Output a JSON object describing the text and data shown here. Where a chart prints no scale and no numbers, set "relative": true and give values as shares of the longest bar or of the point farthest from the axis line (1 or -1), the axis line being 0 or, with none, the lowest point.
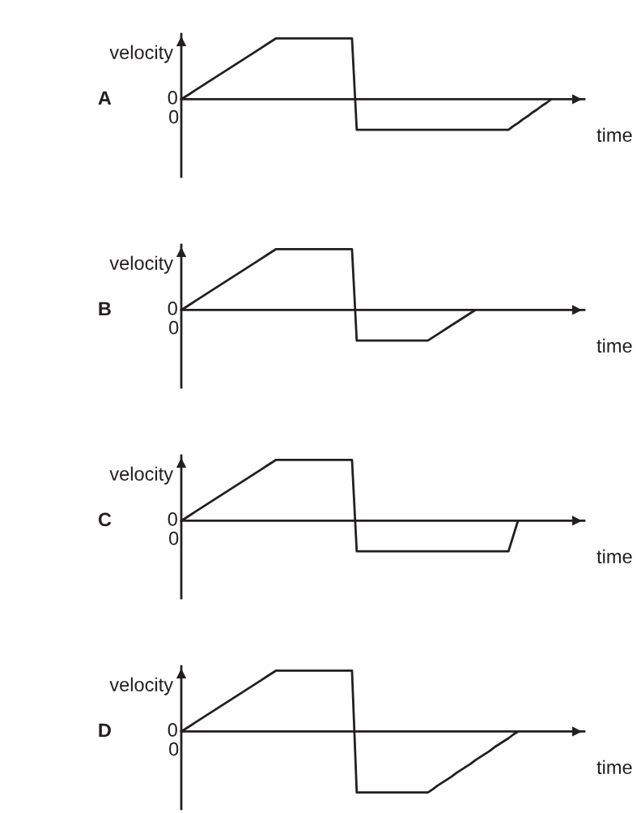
{
  "chart_data": [
    {
      "type": "line",
      "title": "A",
      "xlabel": "time",
      "ylabel": "velocity",
      "relative": true,
      "annotations": [
        "0",
        "0"
      ],
      "legend": false,
      "marker": "none",
      "line_style": "solid",
      "categories": [
        null,
        null,
        null,
        null,
        null,
        null,
        null,
        null,
        null,
        null,
        null,
        null,
        null,
        null,
        null,
        null,
        null,
        null,
        null,
        null,
        null,
        null,
        null,
        null,
        null,
        null,
        null,
        null,
        null,
        null,
        null,
        null,
        null,
        null,
        null,
        null,
        null,
        null,
        null,
        null,
        null,
        null,
        null,
        null,
        null,
        null,
        null,
        null,
        null,
        null,
        null,
        null,
        null,
        null,
        null,
        null,
        null,
        null,
        null,
        null,
        null,
        null,
        null,
        null,
        null,
        null,
        null,
        null,
        null,
        null,
        null,
        null,
        null,
        null,
        null,
        null,
        null,
        null,
        null,
        null,
        null,
        null,
        null,
        null,
        null,
        null
      ],
      "series": [
        {
          "color": "#231f20",
          "values": [
            0,
            0.05,
            0.1,
            0.15,
            0.2,
            0.25,
            0.3,
            0.35,
            0.4,
            0.45,
            0.5,
            0.55,
            0.6,
            0.65,
            0.7,
            0.75,
            0.8,
            0.85,
            0.9,
            0.95,
            1,
            1,
            1,
            1,
            1,
            1,
            1,
            1,
            1,
            1,
            1,
            1,
            1,
            1,
            1,
            1,
            1,
            -0.5,
            -0.5,
            -0.5,
            -0.5,
            -0.5,
            -0.5,
            -0.5,
            -0.5,
            -0.5,
            -0.5,
            -0.5,
            -0.5,
            -0.5,
            -0.5,
            -0.5,
            -0.5,
            -0.5,
            -0.5,
            -0.5,
            -0.5,
            -0.5,
            -0.5,
            -0.5,
            -0.5,
            -0.5,
            -0.5,
            -0.5,
            -0.5,
            -0.5,
            -0.5,
            -0.5,
            -0.5,
            -0.5,
            -0.44,
            -0.39,
            -0.33,
            -0.28,
            -0.22,
            -0.17,
            -0.11,
            -0.06,
            0,
            null,
            null,
            null,
            null,
            null,
            null,
            null
          ]
        }
      ]
    },
    {
      "type": "line",
      "title": "B",
      "xlabel": "time",
      "ylabel": "velocity",
      "relative": true,
      "annotations": [
        "0",
        "0"
      ],
      "legend": false,
      "marker": "none",
      "line_style": "solid",
      "categories": [
        null,
        null,
        null,
        null,
        null,
        null,
        null,
        null,
        null,
        null,
        null,
        null,
        null,
        null,
        null,
        null,
        null,
        null,
        null,
        null,
        null,
        null,
        null,
        null,
        null,
        null,
        null,
        null,
        null,
        null,
        null,
        null,
        null,
        null,
        null,
        null,
        null,
        null,
        null,
        null,
        null,
        null,
        null,
        null,
        null,
        null,
        null,
        null,
        null,
        null,
        null,
        null,
        null,
        null,
        null,
        null,
        null,
        null,
        null,
        null,
        null,
        null,
        null,
        null,
        null,
        null,
        null,
        null,
        null,
        null,
        null,
        null,
        null,
        null,
        null,
        null,
        null,
        null,
        null,
        null,
        null,
        null,
        null,
        null,
        null,
        null
      ],
      "series": [
        {
          "color": "#231f20",
          "values": [
            0,
            0.05,
            0.1,
            0.15,
            0.2,
            0.25,
            0.3,
            0.35,
            0.4,
            0.45,
            0.5,
            0.55,
            0.6,
            0.65,
            0.7,
            0.75,
            0.8,
            0.85,
            0.9,
            0.95,
            1,
            1,
            1,
            1,
            1,
            1,
            1,
            1,
            1,
            1,
            1,
            1,
            1,
            1,
            1,
            1,
            1,
            -0.5,
            -0.5,
            -0.5,
            -0.5,
            -0.5,
            -0.5,
            -0.5,
            -0.5,
            -0.5,
            -0.5,
            -0.5,
            -0.5,
            -0.5,
            -0.5,
            -0.5,
            -0.5,
            -0.45,
            -0.4,
            -0.35,
            -0.3,
            -0.25,
            -0.2,
            -0.15,
            -0.1,
            -0.05,
            0,
            null,
            null,
            null,
            null,
            null,
            null,
            null,
            null,
            null,
            null,
            null,
            null,
            null,
            null,
            null,
            null,
            null,
            null,
            null,
            null,
            null,
            null,
            null
          ]
        }
      ]
    },
    {
      "type": "line",
      "title": "C",
      "xlabel": "time",
      "ylabel": "velocity",
      "relative": true,
      "annotations": [
        "0",
        "0"
      ],
      "legend": false,
      "marker": "none",
      "line_style": "solid",
      "categories": [
        null,
        null,
        null,
        null,
        null,
        null,
        null,
        null,
        null,
        null,
        null,
        null,
        null,
        null,
        null,
        null,
        null,
        null,
        null,
        null,
        null,
        null,
        null,
        null,
        null,
        null,
        null,
        null,
        null,
        null,
        null,
        null,
        null,
        null,
        null,
        null,
        null,
        null,
        null,
        null,
        null,
        null,
        null,
        null,
        null,
        null,
        null,
        null,
        null,
        null,
        null,
        null,
        null,
        null,
        null,
        null,
        null,
        null,
        null,
        null,
        null,
        null,
        null,
        null,
        null,
        null,
        null,
        null,
        null,
        null,
        null,
        null,
        null,
        null,
        null,
        null,
        null,
        null,
        null,
        null,
        null,
        null,
        null,
        null,
        null,
        null
      ],
      "series": [
        {
          "color": "#231f20",
          "values": [
            0,
            0.05,
            0.1,
            0.15,
            0.2,
            0.25,
            0.3,
            0.35,
            0.4,
            0.45,
            0.5,
            0.55,
            0.6,
            0.65,
            0.7,
            0.75,
            0.8,
            0.85,
            0.9,
            0.95,
            1,
            1,
            1,
            1,
            1,
            1,
            1,
            1,
            1,
            1,
            1,
            1,
            1,
            1,
            1,
            1,
            1,
            -0.5,
            -0.5,
            -0.5,
            -0.5,
            -0.5,
            -0.5,
            -0.5,
            -0.5,
            -0.5,
            -0.5,
            -0.5,
            -0.5,
            -0.5,
            -0.5,
            -0.5,
            -0.5,
            -0.5,
            -0.5,
            -0.5,
            -0.5,
            -0.5,
            -0.5,
            -0.5,
            -0.5,
            -0.5,
            -0.5,
            -0.5,
            -0.5,
            -0.5,
            -0.5,
            -0.5,
            -0.5,
            -0.5,
            -0.25,
            0,
            null,
            null,
            null,
            null,
            null,
            null,
            null,
            null,
            null,
            null,
            null,
            null,
            null,
            null
          ]
        }
      ]
    },
    {
      "type": "line",
      "title": "D",
      "xlabel": "time",
      "ylabel": "velocity",
      "relative": true,
      "annotations": [
        "0",
        "0"
      ],
      "legend": false,
      "marker": "none",
      "line_style": "solid",
      "categories": [
        null,
        null,
        null,
        null,
        null,
        null,
        null,
        null,
        null,
        null,
        null,
        null,
        null,
        null,
        null,
        null,
        null,
        null,
        null,
        null,
        null,
        null,
        null,
        null,
        null,
        null,
        null,
        null,
        null,
        null,
        null,
        null,
        null,
        null,
        null,
        null,
        null,
        null,
        null,
        null,
        null,
        null,
        null,
        null,
        null,
        null,
        null,
        null,
        null,
        null,
        null,
        null,
        null,
        null,
        null,
        null,
        null,
        null,
        null,
        null,
        null,
        null,
        null,
        null,
        null,
        null,
        null,
        null,
        null,
        null,
        null,
        null,
        null,
        null,
        null,
        null,
        null,
        null,
        null,
        null,
        null,
        null,
        null,
        null,
        null,
        null
      ],
      "series": [
        {
          "color": "#231f20",
          "values": [
            0,
            0.05,
            0.1,
            0.15,
            0.2,
            0.25,
            0.3,
            0.35,
            0.4,
            0.45,
            0.5,
            0.55,
            0.6,
            0.65,
            0.7,
            0.75,
            0.8,
            0.85,
            0.9,
            0.95,
            1,
            1,
            1,
            1,
            1,
            1,
            1,
            1,
            1,
            1,
            1,
            1,
            1,
            1,
            1,
            1,
            1,
            -1,
            -1,
            -1,
            -1,
            -1,
            -1,
            -1,
            -1,
            -1,
            -1,
            -1,
            -1,
            -1,
            -1,
            -1,
            -1,
            -0.95,
            -0.89,
            -0.84,
            -0.79,
            -0.74,
            -0.68,
            -0.63,
            -0.58,
            -0.53,
            -0.47,
            -0.42,
            -0.37,
            -0.32,
            -0.26,
            -0.21,
            -0.16,
            -0.11,
            -0.05,
            0,
            null,
            null,
            null,
            null,
            null,
            null,
            null,
            null,
            null,
            null,
            null,
            null,
            null,
            null
          ]
        }
      ]
    }
  ]
}
